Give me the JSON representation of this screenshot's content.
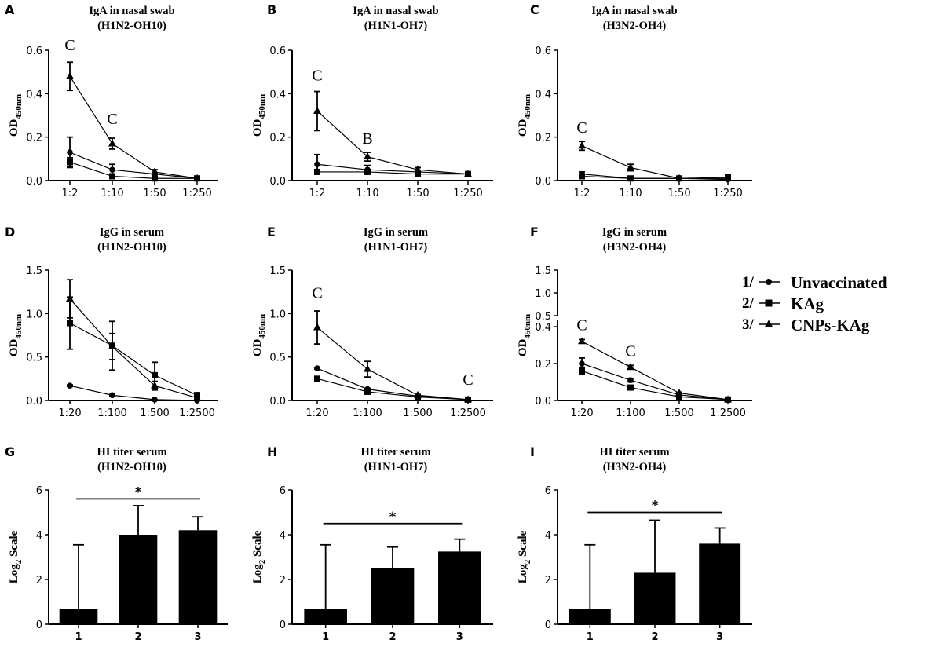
{
  "legend": {
    "items": [
      {
        "num": "1/",
        "label": "Unvaccinated",
        "marker": "circle"
      },
      {
        "num": "2/",
        "label": "KAg",
        "marker": "square"
      },
      {
        "num": "3/",
        "label": "CNPs-KAg",
        "marker": "triangle"
      }
    ]
  },
  "chart_data": [
    {
      "id": "A",
      "type": "line",
      "title": "IgA in nasal swab",
      "subtitle": "(H1N2-OH10)",
      "ylabel": "OD450nm",
      "categories": [
        "1:2",
        "1:10",
        "1:50",
        "1:250"
      ],
      "ylim": [
        0,
        0.6
      ],
      "yticks": [
        "0.0",
        "0.2",
        "0.4",
        "0.6"
      ],
      "series": [
        {
          "name": "Unvaccinated",
          "marker": "circle",
          "values": [
            0.13,
            0.05,
            0.03,
            0.01
          ],
          "err": [
            0.07,
            0.025,
            0.02,
            0.005
          ]
        },
        {
          "name": "KAg",
          "marker": "square",
          "values": [
            0.085,
            0.02,
            0.01,
            0.01
          ],
          "err": [
            0.02,
            0.01,
            0.005,
            0.005
          ]
        },
        {
          "name": "CNPs-KAg",
          "marker": "triangle",
          "values": [
            0.48,
            0.17,
            0.04,
            0.01
          ],
          "err": [
            0.065,
            0.025,
            0.01,
            0.005
          ]
        }
      ],
      "annotations": [
        {
          "text": "C",
          "cat": 0,
          "y": 0.6
        },
        {
          "text": "C",
          "cat": 1,
          "y": 0.26
        }
      ]
    },
    {
      "id": "B",
      "type": "line",
      "title": "IgA in nasal swab",
      "subtitle": "(H1N1-OH7)",
      "ylabel": "OD450nm",
      "categories": [
        "1:2",
        "1:10",
        "1:50",
        "1:250"
      ],
      "ylim": [
        0,
        0.6
      ],
      "yticks": [
        "0.0",
        "0.2",
        "0.4",
        "0.6"
      ],
      "series": [
        {
          "name": "Unvaccinated",
          "marker": "circle",
          "values": [
            0.075,
            0.05,
            0.04,
            0.03
          ],
          "err": [
            0.045,
            0.02,
            0.02,
            0.005
          ]
        },
        {
          "name": "KAg",
          "marker": "square",
          "values": [
            0.04,
            0.04,
            0.03,
            0.03
          ],
          "err": [
            0.005,
            0.005,
            0.005,
            0.005
          ]
        },
        {
          "name": "CNPs-KAg",
          "marker": "triangle",
          "values": [
            0.32,
            0.11,
            0.05,
            0.03
          ],
          "err": [
            0.09,
            0.02,
            0.01,
            0.005
          ]
        }
      ],
      "annotations": [
        {
          "text": "C",
          "cat": 0,
          "y": 0.46
        },
        {
          "text": "B",
          "cat": 1,
          "y": 0.17
        }
      ]
    },
    {
      "id": "C",
      "type": "line",
      "title": "IgA in nasal swab",
      "subtitle": "(H3N2-OH4)",
      "ylabel": "OD450nm",
      "categories": [
        "1:2",
        "1:10",
        "1:50",
        "1:250"
      ],
      "ylim": [
        0,
        0.6
      ],
      "yticks": [
        "0.0",
        "0.2",
        "0.4",
        "0.6"
      ],
      "series": [
        {
          "name": "Unvaccinated",
          "marker": "circle",
          "values": [
            0.03,
            0.01,
            0.01,
            0.005
          ],
          "err": [
            0.01,
            0.005,
            0.005,
            0.005
          ]
        },
        {
          "name": "KAg",
          "marker": "square",
          "values": [
            0.02,
            0.01,
            0.01,
            0.015
          ],
          "err": [
            0.005,
            0.005,
            0.005,
            0.005
          ]
        },
        {
          "name": "CNPs-KAg",
          "marker": "triangle",
          "values": [
            0.16,
            0.06,
            0.01,
            0.01
          ],
          "err": [
            0.02,
            0.015,
            0.005,
            0.005
          ]
        }
      ],
      "annotations": [
        {
          "text": "C",
          "cat": 0,
          "y": 0.22
        }
      ]
    },
    {
      "id": "D",
      "type": "line",
      "title": "IgG in serum",
      "subtitle": "(H1N2-OH10)",
      "ylabel": "OD450nm",
      "categories": [
        "1:20",
        "1:100",
        "1:500",
        "1:2500"
      ],
      "ylim": [
        0,
        1.5
      ],
      "yticks": [
        "0.0",
        "0.5",
        "1.0",
        "1.5"
      ],
      "series": [
        {
          "name": "Unvaccinated",
          "marker": "circle",
          "values": [
            0.17,
            0.06,
            0.01,
            0.0
          ],
          "err": [
            0.01,
            0.01,
            0.005,
            0.005
          ]
        },
        {
          "name": "KAg",
          "marker": "square",
          "values": [
            0.89,
            0.63,
            0.29,
            0.06
          ],
          "err": [
            0.3,
            0.28,
            0.15,
            0.03
          ]
        },
        {
          "name": "CNPs-KAg",
          "marker": "triangle",
          "values": [
            1.17,
            0.62,
            0.17,
            0.03
          ],
          "err": [
            0.22,
            0.15,
            0.05,
            0.02
          ]
        }
      ],
      "annotations": []
    },
    {
      "id": "E",
      "type": "line",
      "title": "IgG in serum",
      "subtitle": "(H1N1-OH7)",
      "ylabel": "OD450nm",
      "categories": [
        "1:20",
        "1:100",
        "1:500",
        "1:2500"
      ],
      "ylim": [
        0,
        1.5
      ],
      "yticks": [
        "0.0",
        "0.5",
        "1.0",
        "1.5"
      ],
      "series": [
        {
          "name": "Unvaccinated",
          "marker": "circle",
          "values": [
            0.37,
            0.13,
            0.05,
            0.01
          ],
          "err": [
            0.01,
            0.01,
            0.005,
            0.005
          ]
        },
        {
          "name": "KAg",
          "marker": "square",
          "values": [
            0.25,
            0.1,
            0.04,
            0.01
          ],
          "err": [
            0.01,
            0.01,
            0.005,
            0.005
          ]
        },
        {
          "name": "CNPs-KAg",
          "marker": "triangle",
          "values": [
            0.84,
            0.36,
            0.06,
            0.01
          ],
          "err": [
            0.19,
            0.09,
            0.01,
            0.005
          ]
        }
      ],
      "annotations": [
        {
          "text": "C",
          "cat": 0,
          "y": 1.18
        },
        {
          "text": "C",
          "cat": 3,
          "y": 0.18
        }
      ]
    },
    {
      "id": "F",
      "type": "line",
      "title": "IgG in serum",
      "subtitle": "(H3N2-OH4)",
      "ylabel": "OD450nm",
      "categories": [
        "1:20",
        "1:100",
        "1:500",
        "1:2500"
      ],
      "ylim": [
        0,
        1.5
      ],
      "yticks_lower": [
        "0.0",
        "0.2",
        "0.4"
      ],
      "yticks_upper": [
        "0.5",
        "1.0",
        "1.5"
      ],
      "axis_break": true,
      "series": [
        {
          "name": "Unvaccinated",
          "marker": "circle",
          "values": [
            0.2,
            0.11,
            0.03,
            0.005
          ],
          "err": [
            0.03,
            0.01,
            0.005,
            0.005
          ]
        },
        {
          "name": "KAg",
          "marker": "square",
          "values": [
            0.16,
            0.07,
            0.02,
            0.005
          ],
          "err": [
            0.02,
            0.01,
            0.005,
            0.005
          ]
        },
        {
          "name": "CNPs-KAg",
          "marker": "triangle",
          "values": [
            0.32,
            0.18,
            0.04,
            0.005
          ],
          "err": [
            0.01,
            0.01,
            0.005,
            0.005
          ]
        }
      ],
      "annotations": [
        {
          "text": "C",
          "cat": 0,
          "y": 0.38
        },
        {
          "text": "C",
          "cat": 1,
          "y": 0.24
        }
      ]
    },
    {
      "id": "G",
      "type": "bar",
      "title": "HI titer serum",
      "subtitle": "(H1N2-OH10)",
      "ylabel": "Log2 Scale",
      "categories": [
        "1",
        "2",
        "3"
      ],
      "ylim": [
        0,
        6
      ],
      "yticks": [
        "0",
        "2",
        "4",
        "6"
      ],
      "values": [
        0.7,
        4.0,
        4.2
      ],
      "err": [
        2.85,
        1.3,
        0.6
      ],
      "significance": {
        "text": "*",
        "from": 0,
        "to": 2,
        "y": 5.6
      }
    },
    {
      "id": "H",
      "type": "bar",
      "title": "HI titer serum",
      "subtitle": "(H1N1-OH7)",
      "ylabel": "Log2 Scale",
      "categories": [
        "1",
        "2",
        "3"
      ],
      "ylim": [
        0,
        6
      ],
      "yticks": [
        "0",
        "2",
        "4",
        "6"
      ],
      "values": [
        0.7,
        2.5,
        3.25
      ],
      "err": [
        2.85,
        0.95,
        0.55
      ],
      "significance": {
        "text": "*",
        "from": 0,
        "to": 2,
        "y": 4.5
      }
    },
    {
      "id": "I",
      "type": "bar",
      "title": "HI titer serum",
      "subtitle": "(H3N2-OH4)",
      "ylabel": "Log2 Scale",
      "categories": [
        "1",
        "2",
        "3"
      ],
      "ylim": [
        0,
        6
      ],
      "yticks": [
        "0",
        "2",
        "4",
        "6"
      ],
      "values": [
        0.7,
        2.3,
        3.6
      ],
      "err": [
        2.85,
        2.35,
        0.7
      ],
      "significance": {
        "text": "*",
        "from": 0,
        "to": 2,
        "y": 5.0
      }
    }
  ]
}
